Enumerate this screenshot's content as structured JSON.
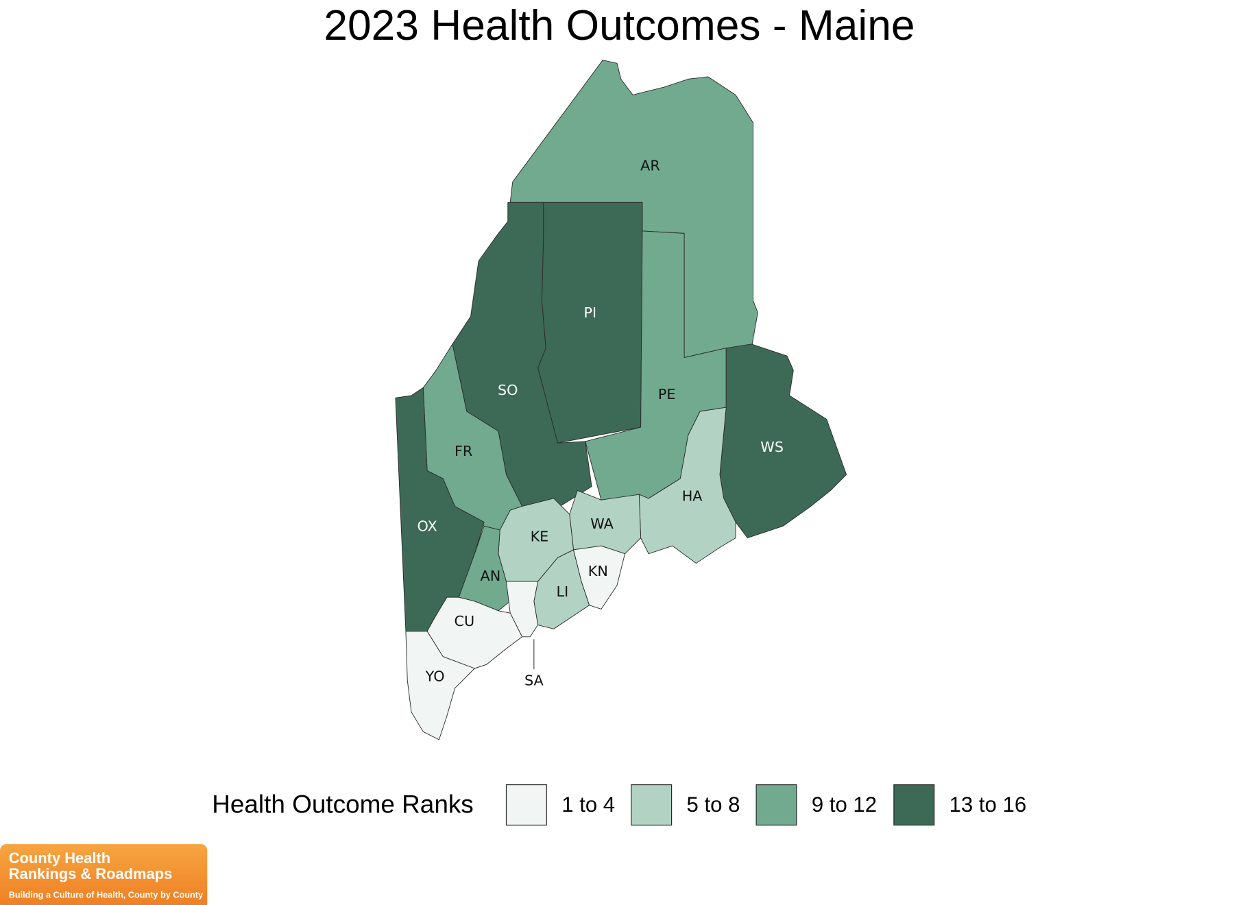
{
  "title": "2023 Health Outcomes - Maine",
  "counties": [
    {
      "label": "AR",
      "color": "#71aa8f"
    },
    {
      "label": "PI",
      "color": "#3d6a56"
    },
    {
      "label": "SO",
      "color": "#3d6a56"
    },
    {
      "label": "PE",
      "color": "#71aa8f"
    },
    {
      "label": "WS",
      "color": "#3d6a56"
    },
    {
      "label": "FR",
      "color": "#71aa8f"
    },
    {
      "label": "OX",
      "color": "#3d6a56"
    },
    {
      "label": "HA",
      "color": "#b2d3c3"
    },
    {
      "label": "WA",
      "color": "#b2d3c3"
    },
    {
      "label": "KE",
      "color": "#b2d3c3"
    },
    {
      "label": "AN",
      "color": "#71aa8f"
    },
    {
      "label": "LI",
      "color": "#b2d3c3"
    },
    {
      "label": "KN",
      "color": "#f1f5f3"
    },
    {
      "label": "SA",
      "color": "#f1f5f3"
    },
    {
      "label": "CU",
      "color": "#f1f5f3"
    },
    {
      "label": "YO",
      "color": "#f1f5f3"
    }
  ],
  "legend": {
    "title": "Health Outcome Ranks",
    "bins": [
      {
        "label": "1 to 4",
        "color": "#f1f5f3"
      },
      {
        "label": "5 to 8",
        "color": "#b2d3c3"
      },
      {
        "label": "9 to 12",
        "color": "#71aa8f"
      },
      {
        "label": "13 to 16",
        "color": "#3d6a56"
      }
    ]
  },
  "logo": {
    "line1": "County Health",
    "line2": "Rankings & Roadmaps",
    "tagline": "Building a Culture of Health, County by County"
  }
}
